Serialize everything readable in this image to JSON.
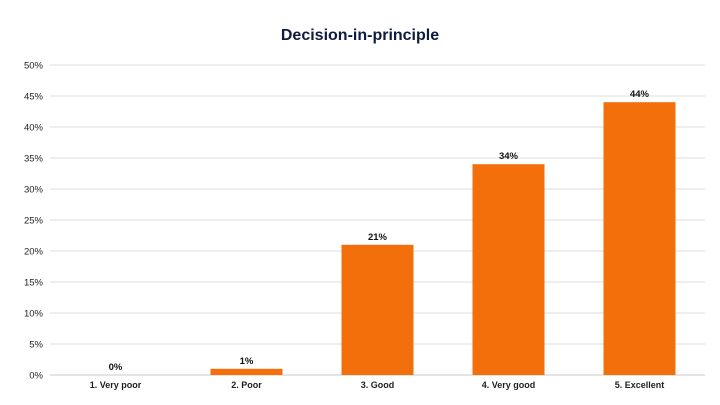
{
  "chart_data": {
    "type": "bar",
    "title": "Decision-in-principle",
    "categories": [
      "1. Very poor",
      "2. Poor",
      "3. Good",
      "4. Very good",
      "5. Excellent"
    ],
    "values": [
      0,
      1,
      21,
      34,
      44
    ],
    "value_labels": [
      "0%",
      "1%",
      "21%",
      "34%",
      "44%"
    ],
    "ylim": [
      0,
      50
    ],
    "y_ticks": [
      0,
      5,
      10,
      15,
      20,
      25,
      30,
      35,
      40,
      45,
      50
    ],
    "y_tick_labels": [
      "0%",
      "5%",
      "10%",
      "15%",
      "20%",
      "25%",
      "30%",
      "35%",
      "40%",
      "45%",
      "50%"
    ],
    "xlabel": "",
    "ylabel": "",
    "grid": true,
    "legend": "none",
    "bar_color": "#f36f0b",
    "grid_color": "#dedede"
  }
}
